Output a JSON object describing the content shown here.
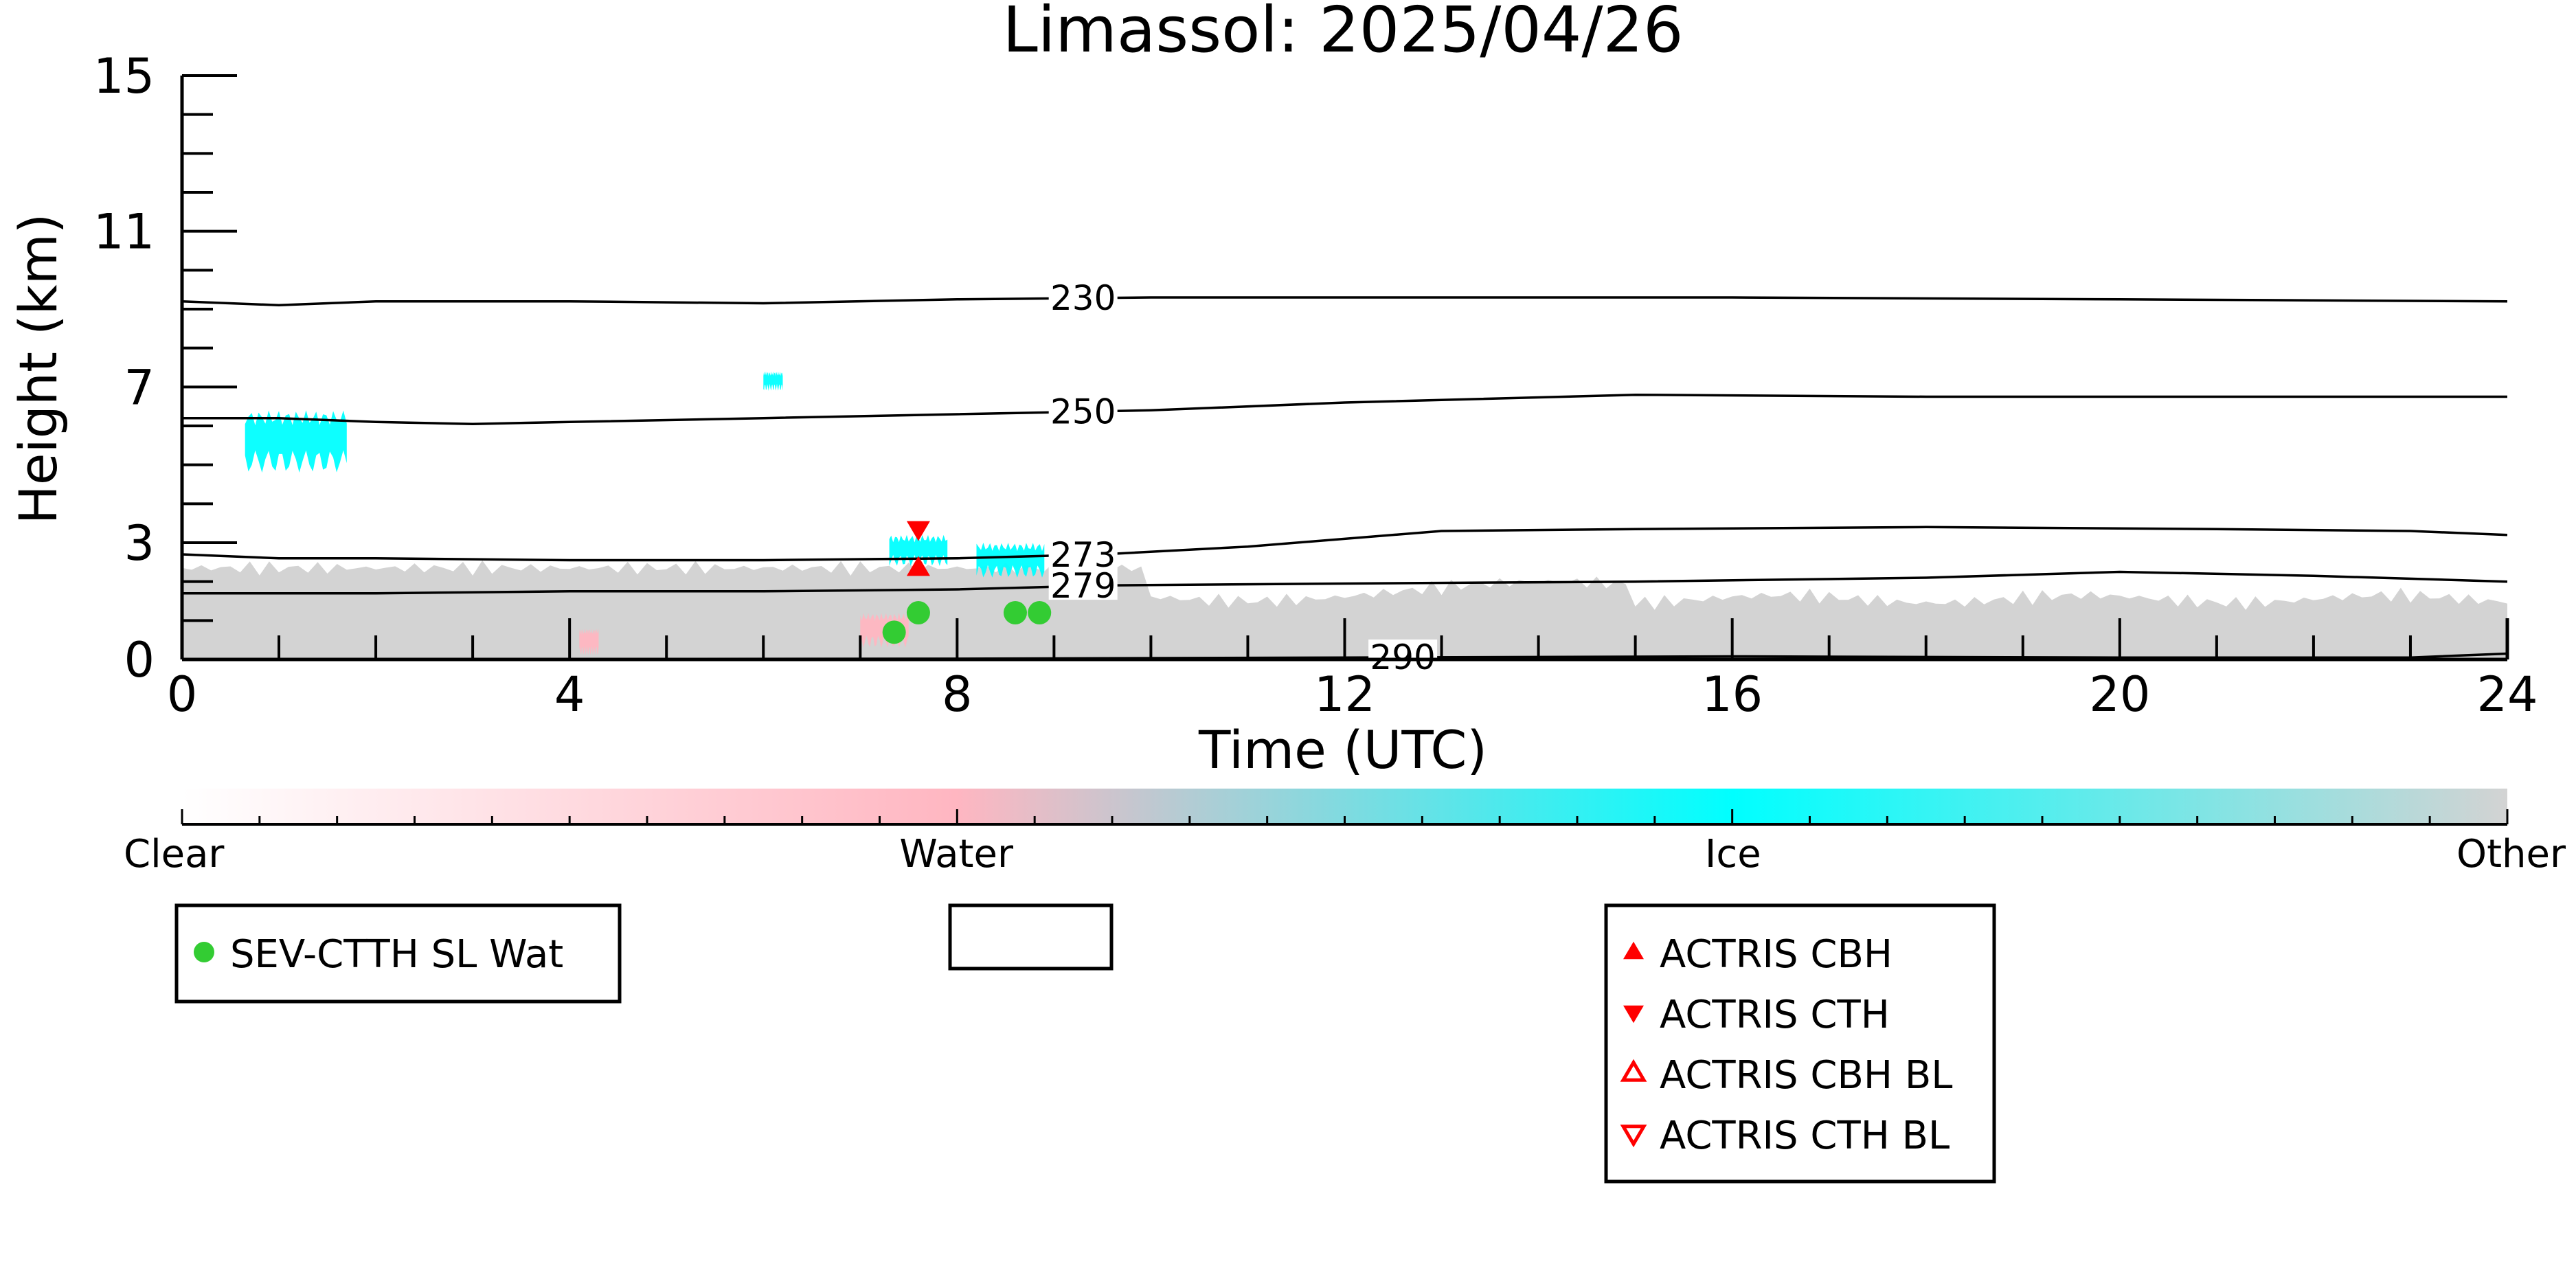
{
  "chart_data": {
    "type": "scatter",
    "title": "Limassol: 2025/04/26",
    "xlabel": "Time (UTC)",
    "ylabel": "Height (km)",
    "xlim": [
      0,
      24
    ],
    "ylim": [
      0,
      15
    ],
    "x_ticks": [
      0,
      4,
      8,
      12,
      16,
      20,
      24
    ],
    "y_ticks": [
      0,
      3,
      7,
      11,
      15
    ],
    "colors": {
      "clear": "#ffffff",
      "water": "#ffb6c1",
      "ice": "#00ffff",
      "other": "#d3d3d3",
      "sev_marker": "#33cc33",
      "actris_marker": "#ff0000"
    },
    "classification_colorbar": {
      "labels": [
        "Clear",
        "Water",
        "Ice",
        "Other"
      ],
      "positions": [
        0,
        0.333,
        0.667,
        1.0
      ]
    },
    "cloud_regions": [
      {
        "class": "other",
        "x_start": 0.0,
        "x_end": 24.0,
        "top_km": 2.2,
        "description_hidden": true
      },
      {
        "class": "ice",
        "x_start": 0.65,
        "x_end": 1.7,
        "bottom_km": 4.8,
        "top_km": 6.4
      },
      {
        "class": "ice",
        "x_start": 6.0,
        "x_end": 6.2,
        "bottom_km": 6.9,
        "top_km": 7.4
      },
      {
        "class": "ice",
        "x_start": 7.3,
        "x_end": 7.9,
        "bottom_km": 2.4,
        "top_km": 3.2
      },
      {
        "class": "ice",
        "x_start": 8.2,
        "x_end": 8.9,
        "bottom_km": 2.1,
        "top_km": 3.0
      },
      {
        "class": "water",
        "x_start": 4.1,
        "x_end": 4.3,
        "bottom_km": 0.1,
        "top_km": 0.8
      },
      {
        "class": "water",
        "x_start": 7.0,
        "x_end": 7.5,
        "bottom_km": 0.3,
        "top_km": 1.2
      }
    ],
    "isotherms": [
      {
        "label": "230",
        "label_x": 9.3,
        "x": [
          0,
          1,
          2,
          4,
          6,
          8,
          10,
          12,
          16,
          20,
          24
        ],
        "y": [
          9.2,
          9.1,
          9.2,
          9.2,
          9.15,
          9.25,
          9.3,
          9.3,
          9.3,
          9.25,
          9.2
        ]
      },
      {
        "label": "250",
        "label_x": 9.3,
        "x": [
          0,
          1,
          2,
          3,
          4,
          6,
          8,
          10,
          12,
          15,
          18,
          21,
          24
        ],
        "y": [
          6.2,
          6.2,
          6.1,
          6.05,
          6.1,
          6.2,
          6.3,
          6.4,
          6.6,
          6.8,
          6.75,
          6.75,
          6.75
        ]
      },
      {
        "label": "273",
        "label_x": 9.3,
        "x": [
          0,
          1,
          2,
          4,
          6,
          8,
          9.5,
          11,
          13,
          15,
          18,
          21,
          23,
          24
        ],
        "y": [
          2.7,
          2.6,
          2.6,
          2.55,
          2.55,
          2.6,
          2.7,
          2.9,
          3.3,
          3.35,
          3.4,
          3.35,
          3.3,
          3.2
        ]
      },
      {
        "label": "279",
        "label_x": 9.3,
        "x": [
          0,
          2,
          4,
          6,
          8,
          9.5,
          12,
          15,
          18,
          20,
          22,
          24
        ],
        "y": [
          1.7,
          1.7,
          1.75,
          1.75,
          1.8,
          1.9,
          1.95,
          2.0,
          2.1,
          2.25,
          2.15,
          2.0
        ]
      },
      {
        "label": "290",
        "label_x": 12.6,
        "x": [
          0,
          4,
          8,
          12,
          16,
          20,
          23,
          24
        ],
        "y": [
          0.01,
          0.01,
          0.02,
          0.05,
          0.08,
          0.05,
          0.05,
          0.15
        ]
      }
    ],
    "series": [
      {
        "name": "SEV-CTTH SL Wat",
        "marker": "circle",
        "color": "#33cc33",
        "x": [
          7.35,
          7.6,
          8.6,
          8.85
        ],
        "y": [
          0.7,
          1.2,
          1.2,
          1.2
        ]
      },
      {
        "name": "ACTRIS CBH",
        "marker": "triangle-up",
        "color": "#ff0000",
        "x": [
          7.6
        ],
        "y": [
          2.35
        ]
      },
      {
        "name": "ACTRIS CTH",
        "marker": "triangle-down",
        "color": "#ff0000",
        "x": [
          7.6
        ],
        "y": [
          3.35
        ]
      },
      {
        "name": "ACTRIS CBH BL",
        "marker": "triangle-up-open",
        "color": "#ff0000",
        "x": [],
        "y": []
      },
      {
        "name": "ACTRIS CTH BL",
        "marker": "triangle-down-open",
        "color": "#ff0000",
        "x": [],
        "y": []
      }
    ],
    "legends": [
      {
        "entries": [
          "SEV-CTTH SL Wat"
        ]
      },
      {
        "entries": []
      },
      {
        "entries": [
          "ACTRIS CBH",
          "ACTRIS CTH",
          "ACTRIS CBH BL",
          "ACTRIS CTH BL"
        ]
      }
    ]
  }
}
